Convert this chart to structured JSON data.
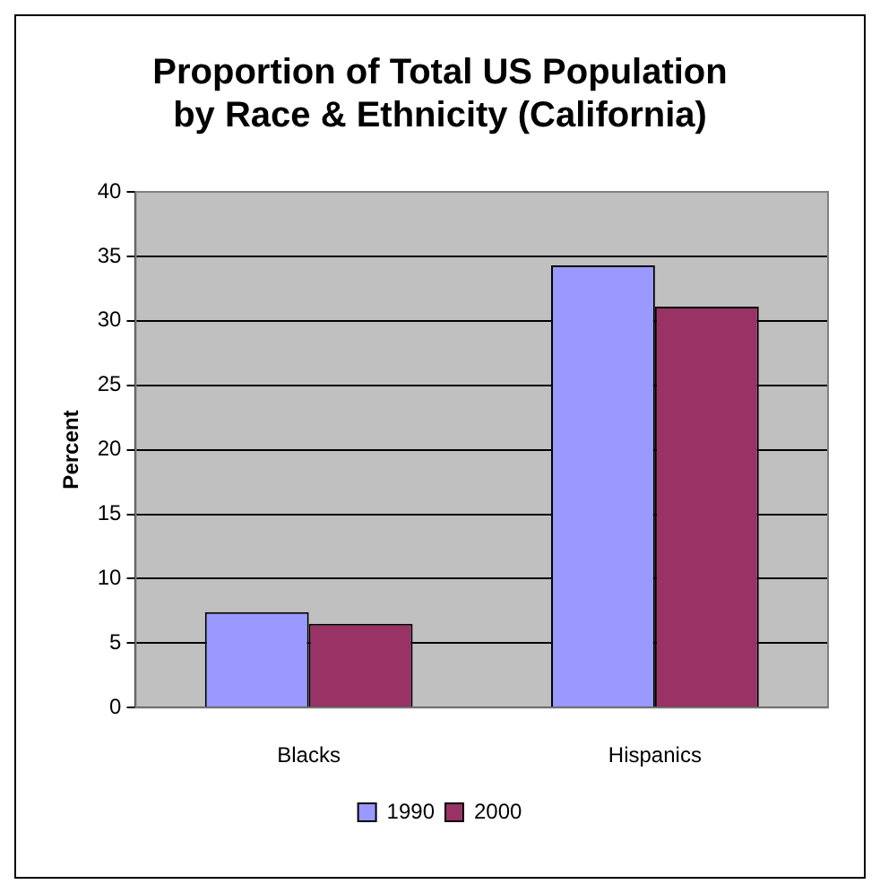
{
  "chart_data": {
    "type": "bar",
    "title": "Proportion of Total US Population\nby Race & Ethnicity (California)",
    "ylabel": "Percent",
    "categories": [
      "Blacks",
      "Hispanics"
    ],
    "series": [
      {
        "name": "1990",
        "color": "#9999ff",
        "values": [
          7.4,
          34.3
        ]
      },
      {
        "name": "2000",
        "color": "#993366",
        "values": [
          6.5,
          31.1
        ]
      }
    ],
    "ylim": [
      0,
      40
    ],
    "yticks": [
      0,
      5,
      10,
      15,
      20,
      25,
      30,
      35,
      40
    ],
    "grid": "y",
    "legend": "bottom"
  }
}
